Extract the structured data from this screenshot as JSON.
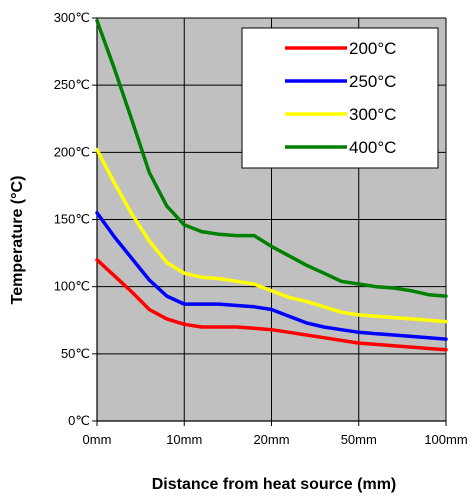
{
  "chart_data": {
    "type": "line",
    "xlabel": "Distance from heat source (mm)",
    "ylabel": "Temperature (°C)",
    "x_tick_labels": [
      "0mm",
      "10mm",
      "20mm",
      "50mm",
      "100mm"
    ],
    "y_tick_labels": [
      "0℃",
      "50℃",
      "100℃",
      "150℃",
      "200℃",
      "250℃",
      "300℃"
    ],
    "y_ticks": [
      0,
      50,
      100,
      150,
      200,
      250,
      300
    ],
    "ylim": [
      0,
      300
    ],
    "x_scale": "categorical-positions",
    "x_positions": [
      0,
      0.5,
      1,
      1.5,
      2,
      2.5,
      3,
      3.5,
      4,
      4.5,
      5,
      5.5,
      6,
      6.5,
      7,
      7.5,
      8,
      8.5,
      9,
      9.5,
      10
    ],
    "grid": true,
    "plot_background": "#c0c0c0",
    "legend_position": "top-right",
    "series": [
      {
        "name": "200°C",
        "color": "#ff0000",
        "values": [
          120,
          108,
          96,
          83,
          76,
          72,
          70,
          70,
          70,
          69,
          68,
          66,
          64,
          62,
          60,
          58,
          57,
          56,
          55,
          54,
          53
        ]
      },
      {
        "name": "250°C",
        "color": "#0000ff",
        "values": [
          155,
          137,
          121,
          105,
          93,
          87,
          87,
          87,
          86,
          85,
          83,
          78,
          73,
          70,
          68,
          66,
          65,
          64,
          63,
          62,
          61
        ]
      },
      {
        "name": "300°C",
        "color": "#ffff00",
        "values": [
          202,
          177,
          154,
          134,
          118,
          110,
          107,
          106,
          104,
          102,
          97,
          92,
          89,
          85,
          81,
          79,
          78,
          77,
          76,
          75,
          74
        ]
      },
      {
        "name": "400°C",
        "color": "#008000",
        "values": [
          298,
          262,
          224,
          185,
          160,
          146,
          141,
          139,
          138,
          138,
          130,
          123,
          116,
          110,
          104,
          102,
          100,
          99,
          97,
          94,
          93
        ]
      }
    ]
  }
}
